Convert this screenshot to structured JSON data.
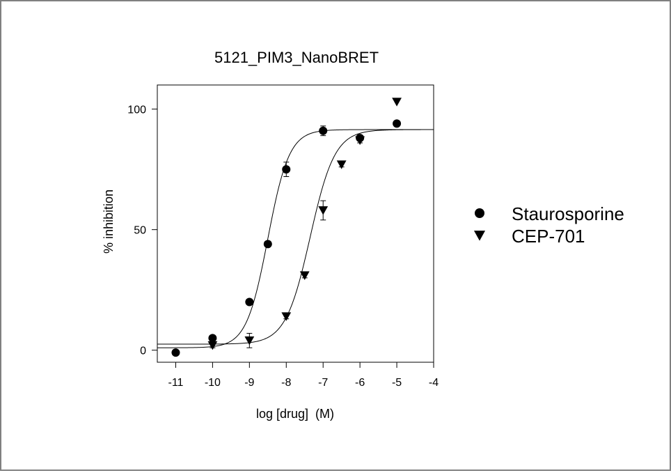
{
  "chart_data": {
    "type": "scatter",
    "title": "5121_PIM3_NanoBRET",
    "xlabel": "log [drug]  (M)",
    "ylabel": "% inhibition",
    "xlim": [
      -11.5,
      -4
    ],
    "ylim": [
      -5,
      110
    ],
    "x_ticks": [
      -11,
      -10,
      -9,
      -8,
      -7,
      -6,
      -5,
      -4
    ],
    "y_ticks": [
      0,
      50,
      100
    ],
    "grid": false,
    "legend_position": "right",
    "series": [
      {
        "name": "Staurosporine",
        "marker": "circle",
        "x": [
          -11,
          -10,
          -9,
          -8.5,
          -8,
          -7,
          -6,
          -5
        ],
        "y": [
          -1,
          5,
          20,
          44,
          75,
          91,
          88,
          94
        ],
        "error": [
          0,
          1,
          1,
          1,
          3,
          2,
          1,
          1
        ],
        "fit": {
          "bottom": 1,
          "top": 91.5,
          "logEC50": -8.5,
          "hill": 1.5
        }
      },
      {
        "name": "CEP-701",
        "marker": "triangle-down",
        "x": [
          -10,
          -9,
          -8,
          -7.5,
          -7,
          -6.5,
          -6,
          -5
        ],
        "y": [
          2,
          4,
          14,
          31,
          58,
          77,
          87,
          103
        ],
        "error": [
          1,
          3,
          1,
          1,
          4,
          1,
          1,
          0
        ],
        "fit": {
          "bottom": 2.5,
          "top": 91.5,
          "logEC50": -7.35,
          "hill": 1.3
        }
      }
    ]
  }
}
